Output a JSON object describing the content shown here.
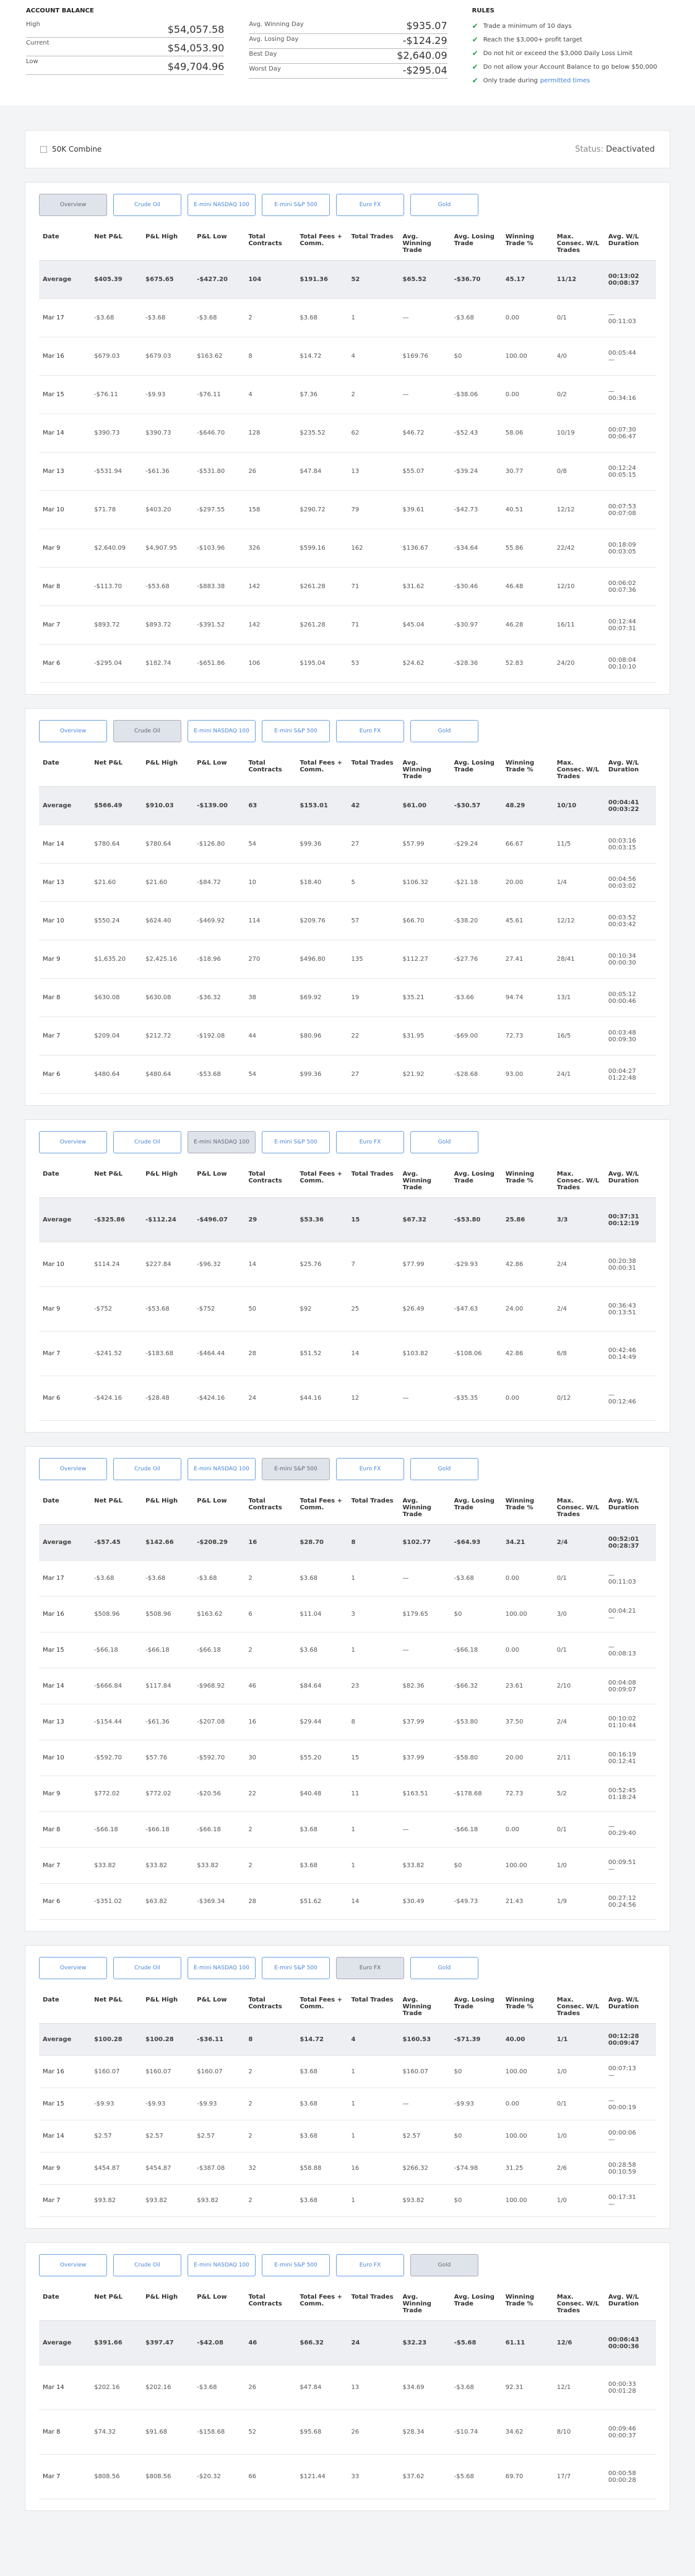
{
  "account_balance": {
    "title": "ACCOUNT BALANCE",
    "rows": [
      [
        "High",
        "$54,057.58"
      ],
      [
        "Current",
        "$54,053.90"
      ],
      [
        "Low",
        "$49,704.96"
      ]
    ]
  },
  "day_stats": {
    "rows": [
      [
        "Avg. Winning Day",
        "$935.07"
      ],
      [
        "Avg. Losing Day",
        "-$124.29"
      ],
      [
        "Best Day",
        "$2,640.09"
      ],
      [
        "Worst Day",
        "-$295.04"
      ]
    ]
  },
  "rules": {
    "title": "RULES",
    "items": [
      {
        "text": "Trade a minimum of 10 days"
      },
      {
        "text": "Reach the $3,000+ profit target"
      },
      {
        "text": "Do not hit or exceed the $3,000 Daily Loss Limit"
      },
      {
        "text": "Do not allow your Account Balance to go below $50,000"
      },
      {
        "text": "Only trade during",
        "link": "permitted times"
      }
    ]
  },
  "combine": {
    "name": "50K Combine",
    "status_label": "Status:",
    "status": "Deactivated"
  },
  "tabs": [
    "Overview",
    "Crude Oil",
    "E-mini NASDAQ 100",
    "E-mini S&P 500",
    "Euro FX",
    "Gold"
  ],
  "columns": [
    "Date",
    "Net P&L",
    "P&L High",
    "P&L Low",
    "Total Contracts",
    "Total Fees + Comm.",
    "Total Trades",
    "Avg. Winning Trade",
    "Avg. Losing Trade",
    "Winning Trade %",
    "Max. Consec. W/L Trades",
    "Avg. W/L Duration"
  ],
  "panels": [
    {
      "active_tab": 0,
      "rows": [
        [
          "Average",
          "$405.39",
          "$675.65",
          "-$427.20",
          "104",
          "$191.36",
          "52",
          "$65.52",
          "-$36.70",
          "45.17",
          "11/12",
          [
            "00:13:02",
            "00:08:37"
          ]
        ],
        [
          "Mar 17",
          "-$3.68",
          "-$3.68",
          "-$3.68",
          "2",
          "$3.68",
          "1",
          "—",
          "-$3.68",
          "0.00",
          "0/1",
          [
            "—",
            "00:11:03"
          ]
        ],
        [
          "Mar 16",
          "$679.03",
          "$679.03",
          "$163.62",
          "8",
          "$14.72",
          "4",
          "$169.76",
          "$0",
          "100.00",
          "4/0",
          [
            "00:05:44",
            "—"
          ]
        ],
        [
          "Mar 15",
          "-$76.11",
          "-$9.93",
          "-$76.11",
          "4",
          "$7.36",
          "2",
          "—",
          "-$38.06",
          "0.00",
          "0/2",
          [
            "—",
            "00:34:16"
          ]
        ],
        [
          "Mar 14",
          "$390.73",
          "$390.73",
          "-$646.70",
          "128",
          "$235.52",
          "62",
          "$46.72",
          "-$52.43",
          "58.06",
          "10/19",
          [
            "00:07:30",
            "00:06:47"
          ]
        ],
        [
          "Mar 13",
          "-$531.94",
          "-$61.36",
          "-$531.80",
          "26",
          "$47.84",
          "13",
          "$55.07",
          "-$39.24",
          "30.77",
          "0/8",
          [
            "00:12:24",
            "00:05:15"
          ]
        ],
        [
          "Mar 10",
          "$71.78",
          "$403.20",
          "-$297.55",
          "158",
          "$290.72",
          "79",
          "$39.61",
          "-$42.73",
          "40.51",
          "12/12",
          [
            "00:07:53",
            "00:07:08"
          ]
        ],
        [
          "Mar 9",
          "$2,640.09",
          "$4,907.95",
          "-$103.96",
          "326",
          "$599.16",
          "162",
          "$136.67",
          "-$34.64",
          "55.86",
          "22/42",
          [
            "00:18:09",
            "00:03:05"
          ]
        ],
        [
          "Mar 8",
          "-$113.70",
          "-$53.68",
          "-$883.38",
          "142",
          "$261.28",
          "71",
          "$31.62",
          "-$30.46",
          "46.48",
          "12/10",
          [
            "00:06:02",
            "00:07:36"
          ]
        ],
        [
          "Mar 7",
          "$893.72",
          "$893.72",
          "-$391.52",
          "142",
          "$261.28",
          "71",
          "$45.04",
          "-$30.97",
          "46.28",
          "16/11",
          [
            "00:12:44",
            "00:07:31"
          ]
        ],
        [
          "Mar 6",
          "-$295.04",
          "$182.74",
          "-$651.86",
          "106",
          "$195.04",
          "53",
          "$24.62",
          "-$28.36",
          "52.83",
          "24/20",
          [
            "00:08:04",
            "00:10:10"
          ]
        ]
      ]
    },
    {
      "active_tab": 1,
      "rows": [
        [
          "Average",
          "$566.49",
          "$910.03",
          "-$139.00",
          "63",
          "$153.01",
          "42",
          "$61.00",
          "-$30.57",
          "48.29",
          "10/10",
          [
            "00:04:41",
            "00:03:22"
          ]
        ],
        [
          "Mar 14",
          "$780.64",
          "$780.64",
          "-$126.80",
          "54",
          "$99.36",
          "27",
          "$57.99",
          "-$29.24",
          "66.67",
          "11/5",
          [
            "00:03:16",
            "00:03:15"
          ]
        ],
        [
          "Mar 13",
          "$21.60",
          "$21.60",
          "-$84.72",
          "10",
          "$18.40",
          "5",
          "$106.32",
          "-$21.18",
          "20.00",
          "1/4",
          [
            "00:04:56",
            "00:03:02"
          ]
        ],
        [
          "Mar 10",
          "$550.24",
          "$624.40",
          "-$469.92",
          "114",
          "$209.76",
          "57",
          "$66.70",
          "-$38.20",
          "45.61",
          "12/12",
          [
            "00:03:52",
            "00:03:42"
          ]
        ],
        [
          "Mar 9",
          "$1,635.20",
          "$2,425.16",
          "-$18.96",
          "270",
          "$496.80",
          "135",
          "$112.27",
          "-$27.76",
          "27.41",
          "28/41",
          [
            "00:10:34",
            "00:00:30"
          ]
        ],
        [
          "Mar 8",
          "$630.08",
          "$630.08",
          "-$36.32",
          "38",
          "$69.92",
          "19",
          "$35.21",
          "-$3.66",
          "94.74",
          "13/1",
          [
            "00:05:12",
            "00:00:46"
          ]
        ],
        [
          "Mar 7",
          "$209.04",
          "$212.72",
          "-$192.08",
          "44",
          "$80.96",
          "22",
          "$31.95",
          "-$69.00",
          "72.73",
          "16/5",
          [
            "00:03:48",
            "00:09:30"
          ]
        ],
        [
          "Mar 6",
          "$480.64",
          "$480.64",
          "-$53.68",
          "54",
          "$99.36",
          "27",
          "$21.92",
          "-$28.68",
          "93.00",
          "24/1",
          [
            "00:04:27",
            "01:22:48"
          ]
        ]
      ]
    },
    {
      "active_tab": 2,
      "rows": [
        [
          "Average",
          "-$325.86",
          "-$112.24",
          "-$496.07",
          "29",
          "$53.36",
          "15",
          "$67.32",
          "-$53.80",
          "25.86",
          "3/3",
          [
            "00:37:31",
            "00:12:19"
          ]
        ],
        [
          "Mar 10",
          "$114.24",
          "$227.84",
          "-$96.32",
          "14",
          "$25.76",
          "7",
          "$77.99",
          "-$29.93",
          "42.86",
          "2/4",
          [
            "00:20:38",
            "00:00:31"
          ]
        ],
        [
          "Mar 9",
          "-$752",
          "-$53.68",
          "-$752",
          "50",
          "$92",
          "25",
          "$26.49",
          "-$47.63",
          "24.00",
          "2/4",
          [
            "00:36:43",
            "00:13:51"
          ]
        ],
        [
          "Mar 7",
          "-$241.52",
          "-$183.68",
          "-$464.44",
          "28",
          "$51.52",
          "14",
          "$103.82",
          "-$108.06",
          "42.86",
          "6/8",
          [
            "00:42:46",
            "00:14:49"
          ]
        ],
        [
          "Mar 6",
          "-$424.16",
          "-$28.48",
          "-$424.16",
          "24",
          "$44.16",
          "12",
          "—",
          "-$35.35",
          "0.00",
          "0/12",
          [
            "—",
            "00:12:46"
          ]
        ]
      ]
    },
    {
      "active_tab": 3,
      "rows": [
        [
          "Average",
          "-$57.45",
          "$142.66",
          "-$208.29",
          "16",
          "$28.70",
          "8",
          "$102.77",
          "-$64.93",
          "34.21",
          "2/4",
          [
            "00:52:01",
            "00:28:37"
          ]
        ],
        [
          "Mar 17",
          "-$3.68",
          "-$3.68",
          "-$3.68",
          "2",
          "$3.68",
          "1",
          "—",
          "-$3.68",
          "0.00",
          "0/1",
          [
            "—",
            "00:11:03"
          ]
        ],
        [
          "Mar 16",
          "$508.96",
          "$508.96",
          "$163.62",
          "6",
          "$11.04",
          "3",
          "$179.65",
          "$0",
          "100.00",
          "3/0",
          [
            "00:04:21",
            "—"
          ]
        ],
        [
          "Mar 15",
          "-$66.18",
          "-$66.18",
          "-$66.18",
          "2",
          "$3.68",
          "1",
          "—",
          "-$66.18",
          "0.00",
          "0/1",
          [
            "—",
            "00:08:13"
          ]
        ],
        [
          "Mar 14",
          "-$666.84",
          "$117.84",
          "-$968.92",
          "46",
          "$84.64",
          "23",
          "$82.36",
          "-$66.32",
          "23.61",
          "2/10",
          [
            "00:04:08",
            "00:09:07"
          ]
        ],
        [
          "Mar 13",
          "-$154.44",
          "-$61.36",
          "-$207.08",
          "16",
          "$29.44",
          "8",
          "$37.99",
          "-$53.80",
          "37.50",
          "2/4",
          [
            "00:10:02",
            "01:10:44"
          ]
        ],
        [
          "Mar 10",
          "-$592.70",
          "$57.76",
          "-$592.70",
          "30",
          "$55.20",
          "15",
          "$37.99",
          "-$58.80",
          "20.00",
          "2/11",
          [
            "00:16:19",
            "00:12:41"
          ]
        ],
        [
          "Mar 9",
          "$772.02",
          "$772.02",
          "-$20.56",
          "22",
          "$40.48",
          "11",
          "$163.51",
          "-$178.68",
          "72.73",
          "5/2",
          [
            "00:52:45",
            "01:18:24"
          ]
        ],
        [
          "Mar 8",
          "-$66.18",
          "-$66.18",
          "-$66.18",
          "2",
          "$3.68",
          "1",
          "—",
          "-$66.18",
          "0.00",
          "0/1",
          [
            "—",
            "00:29:40"
          ]
        ],
        [
          "Mar 7",
          "$33.82",
          "$33.82",
          "$33.82",
          "2",
          "$3.68",
          "1",
          "$33.82",
          "$0",
          "100.00",
          "1/0",
          [
            "00:09:51",
            "—"
          ]
        ],
        [
          "Mar 6",
          "-$351.02",
          "$63.82",
          "-$369.34",
          "28",
          "$51.62",
          "14",
          "$30.49",
          "-$49.73",
          "21.43",
          "1/9",
          [
            "00:27:12",
            "00:24:56"
          ]
        ]
      ]
    },
    {
      "active_tab": 4,
      "rows": [
        [
          "Average",
          "$100.28",
          "$100.28",
          "-$36.11",
          "8",
          "$14.72",
          "4",
          "$160.53",
          "-$71.39",
          "40.00",
          "1/1",
          [
            "00:12:28",
            "00:09:47"
          ]
        ],
        [
          "Mar 16",
          "$160.07",
          "$160.07",
          "$160.07",
          "2",
          "$3.68",
          "1",
          "$160.07",
          "$0",
          "100.00",
          "1/0",
          [
            "00:07:13",
            "—"
          ]
        ],
        [
          "Mar 15",
          "-$9.93",
          "-$9.93",
          "-$9.93",
          "2",
          "$3.68",
          "1",
          "—",
          "-$9.93",
          "0.00",
          "0/1",
          [
            "—",
            "00:00:19"
          ]
        ],
        [
          "Mar 14",
          "$2.57",
          "$2.57",
          "$2.57",
          "2",
          "$3.68",
          "1",
          "$2.57",
          "$0",
          "100.00",
          "1/0",
          [
            "00:00:06",
            "—"
          ]
        ],
        [
          "Mar 9",
          "$454.87",
          "$454.87",
          "-$387.08",
          "32",
          "$58.88",
          "16",
          "$266.32",
          "-$74.98",
          "31.25",
          "2/6",
          [
            "00:28:58",
            "00:10:59"
          ]
        ],
        [
          "Mar 7",
          "$93.82",
          "$93.82",
          "$93.82",
          "2",
          "$3.68",
          "1",
          "$93.82",
          "$0",
          "100.00",
          "1/0",
          [
            "00:17:31",
            "—"
          ]
        ]
      ]
    },
    {
      "active_tab": 5,
      "rows": [
        [
          "Average",
          "$391.66",
          "$397.47",
          "-$42.08",
          "46",
          "$66.32",
          "24",
          "$32.23",
          "-$5.68",
          "61.11",
          "12/6",
          [
            "00:06:43",
            "00:00:36"
          ]
        ],
        [
          "Mar 14",
          "$202.16",
          "$202.16",
          "-$3.68",
          "26",
          "$47.84",
          "13",
          "$34.69",
          "-$3.68",
          "92.31",
          "12/1",
          [
            "00:00:33",
            "00:01:28"
          ]
        ],
        [
          "Mar 8",
          "$74.32",
          "$91.68",
          "-$158.68",
          "52",
          "$95.68",
          "26",
          "$28.34",
          "-$10.74",
          "34.62",
          "8/10",
          [
            "00:09:46",
            "00:00:37"
          ]
        ],
        [
          "Mar 7",
          "$808.56",
          "$808.56",
          "-$20.32",
          "66",
          "$121.44",
          "33",
          "$37.62",
          "-$5.68",
          "69.70",
          "17/7",
          [
            "00:00:58",
            "00:00:28"
          ]
        ]
      ]
    }
  ]
}
